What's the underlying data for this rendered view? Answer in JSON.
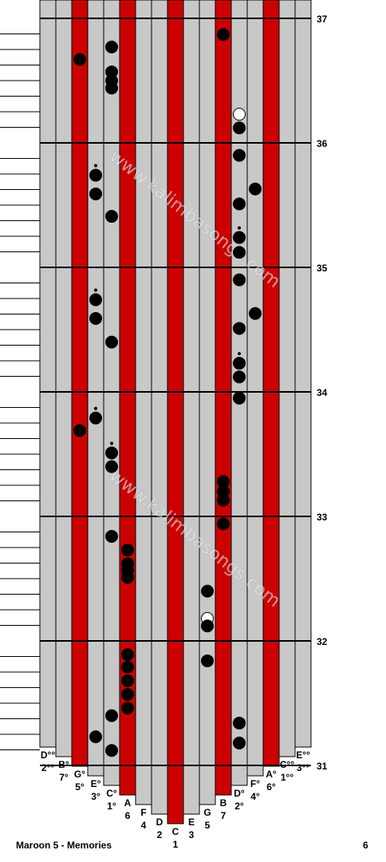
{
  "tines": [
    {
      "note": "D°°",
      "num": "2°°",
      "color": "#c8c8c8"
    },
    {
      "note": "B°",
      "num": "7°",
      "color": "#c8c8c8"
    },
    {
      "note": "G°",
      "num": "5°",
      "color": "#cc0000"
    },
    {
      "note": "E°",
      "num": "3°",
      "color": "#c8c8c8"
    },
    {
      "note": "C°",
      "num": "1°",
      "color": "#c8c8c8"
    },
    {
      "note": "A",
      "num": "6",
      "color": "#cc0000"
    },
    {
      "note": "F",
      "num": "4",
      "color": "#c8c8c8"
    },
    {
      "note": "D",
      "num": "2",
      "color": "#c8c8c8"
    },
    {
      "note": "C",
      "num": "1",
      "color": "#cc0000"
    },
    {
      "note": "E",
      "num": "3",
      "color": "#c8c8c8"
    },
    {
      "note": "G",
      "num": "5",
      "color": "#c8c8c8"
    },
    {
      "note": "B",
      "num": "7",
      "color": "#cc0000"
    },
    {
      "note": "D°",
      "num": "2°",
      "color": "#c8c8c8"
    },
    {
      "note": "F°",
      "num": "4°",
      "color": "#c8c8c8"
    },
    {
      "note": "A°",
      "num": "6°",
      "color": "#cc0000"
    },
    {
      "note": "C°°",
      "num": "1°°",
      "color": "#c8c8c8"
    },
    {
      "note": "E°°",
      "num": "3°°",
      "color": "#c8c8c8"
    }
  ],
  "measures": [
    "37",
    "36",
    "35",
    "34",
    "33",
    "32",
    "31"
  ],
  "notes": [
    {
      "tine": 11,
      "beat": 36.87
    },
    {
      "tine": 4,
      "beat": 36.77
    },
    {
      "tine": 2,
      "beat": 36.67
    },
    {
      "tine": 4,
      "beat": 36.57
    },
    {
      "tine": 4,
      "beat": 36.5
    },
    {
      "tine": 4,
      "beat": 36.44
    },
    {
      "tine": 12,
      "beat": 36.23,
      "hollow": true
    },
    {
      "tine": 12,
      "beat": 36.12
    },
    {
      "tine": 12,
      "beat": 35.9
    },
    {
      "tine": 3,
      "beat": 35.74,
      "dot": true
    },
    {
      "tine": 13,
      "beat": 35.63
    },
    {
      "tine": 3,
      "beat": 35.59
    },
    {
      "tine": 12,
      "beat": 35.51
    },
    {
      "tine": 4,
      "beat": 35.41
    },
    {
      "tine": 12,
      "beat": 35.24,
      "dot": true
    },
    {
      "tine": 12,
      "beat": 35.12
    },
    {
      "tine": 12,
      "beat": 34.9
    },
    {
      "tine": 3,
      "beat": 34.74,
      "dot": true
    },
    {
      "tine": 13,
      "beat": 34.63
    },
    {
      "tine": 3,
      "beat": 34.59
    },
    {
      "tine": 12,
      "beat": 34.51
    },
    {
      "tine": 4,
      "beat": 34.4
    },
    {
      "tine": 12,
      "beat": 34.23,
      "dot": true
    },
    {
      "tine": 12,
      "beat": 34.12
    },
    {
      "tine": 12,
      "beat": 33.95
    },
    {
      "tine": 3,
      "beat": 33.79,
      "dot": true
    },
    {
      "tine": 2,
      "beat": 33.69
    },
    {
      "tine": 4,
      "beat": 33.51,
      "dot": true
    },
    {
      "tine": 4,
      "beat": 33.4
    },
    {
      "tine": 11,
      "beat": 33.28
    },
    {
      "tine": 11,
      "beat": 33.2
    },
    {
      "tine": 11,
      "beat": 33.13
    },
    {
      "tine": 11,
      "beat": 32.94
    },
    {
      "tine": 4,
      "beat": 32.84
    },
    {
      "tine": 5,
      "beat": 32.73
    },
    {
      "tine": 5,
      "beat": 32.62
    },
    {
      "tine": 5,
      "beat": 32.57
    },
    {
      "tine": 5,
      "beat": 32.51
    },
    {
      "tine": 10,
      "beat": 32.4
    },
    {
      "tine": 10,
      "beat": 32.18,
      "hollow": true
    },
    {
      "tine": 10,
      "beat": 32.12
    },
    {
      "tine": 5,
      "beat": 31.89
    },
    {
      "tine": 10,
      "beat": 31.84
    },
    {
      "tine": 5,
      "beat": 31.79
    },
    {
      "tine": 5,
      "beat": 31.68
    },
    {
      "tine": 5,
      "beat": 31.57
    },
    {
      "tine": 5,
      "beat": 31.46
    },
    {
      "tine": 4,
      "beat": 31.4
    },
    {
      "tine": 12,
      "beat": 31.34
    },
    {
      "tine": 3,
      "beat": 31.23
    },
    {
      "tine": 12,
      "beat": 31.18
    },
    {
      "tine": 4,
      "beat": 31.12
    }
  ],
  "watermark": "www.kalimbasongs.com",
  "footer": {
    "title": "Maroon 5 - Memories",
    "page": "6"
  }
}
